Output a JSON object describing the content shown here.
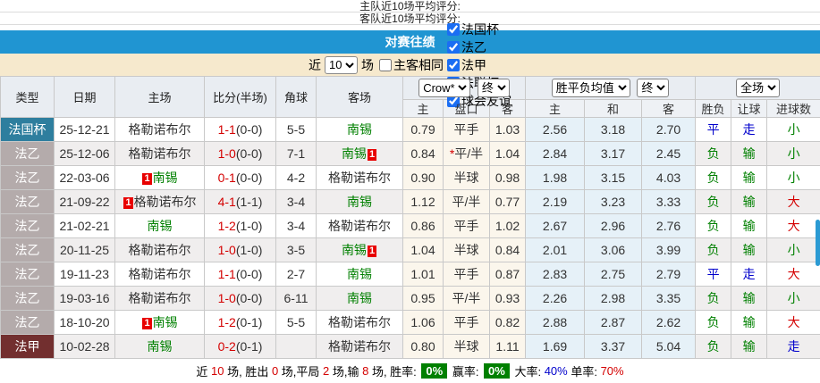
{
  "ratings": {
    "home_label": "主队近10场平均评分:",
    "away_label": "客队近10场平均评分:"
  },
  "banner": {
    "title": "对赛往绩"
  },
  "filter": {
    "near_label": "近",
    "count_value": "10",
    "matches_label": "场",
    "same_venue": {
      "label": "主客相同",
      "checked": false
    },
    "leagues": [
      {
        "label": "法国杯",
        "checked": true
      },
      {
        "label": "法乙",
        "checked": true
      },
      {
        "label": "法甲",
        "checked": true
      },
      {
        "label": "法联杯",
        "checked": true
      },
      {
        "label": "球会友谊",
        "checked": true
      }
    ]
  },
  "table": {
    "main_headers": [
      "类型",
      "日期",
      "主场",
      "比分(半场)",
      "角球",
      "客场"
    ],
    "group_selects": {
      "company": "Crow*",
      "company_final": "终",
      "wdl_avg": "胜平负均值",
      "wdl_final": "终",
      "full_match": "全场"
    },
    "sub_headers": [
      "主",
      "盘口",
      "客",
      "主",
      "和",
      "客",
      "胜负",
      "让球",
      "进球数"
    ],
    "rows": [
      {
        "league": "法国杯",
        "league_class": "cup",
        "date": "25-12-21",
        "home": "格勒诺布尔",
        "home_color": "dark",
        "home_badge": "",
        "score_ft": "1-1",
        "score_ht": "(0-0)",
        "corners": "5-5",
        "away": "南锡",
        "away_color": "green",
        "away_badge": "",
        "odds_home": "0.79",
        "handicap": "平手",
        "handicap_star": false,
        "odds_away": "1.03",
        "avg_home": "2.56",
        "avg_draw": "3.18",
        "avg_away": "2.70",
        "result": "平",
        "result_color": "blue",
        "give": "走",
        "give_color": "blue",
        "goals": "小",
        "goals_color": "green"
      },
      {
        "league": "法乙",
        "league_class": "l2",
        "date": "25-12-06",
        "home": "格勒诺布尔",
        "home_color": "dark",
        "home_badge": "",
        "score_ft": "1-0",
        "score_ht": "(0-0)",
        "corners": "7-1",
        "away": "南锡",
        "away_color": "green",
        "away_badge": "1",
        "odds_home": "0.84",
        "handicap": "平/半",
        "handicap_star": true,
        "odds_away": "1.04",
        "avg_home": "2.84",
        "avg_draw": "3.17",
        "avg_away": "2.45",
        "result": "负",
        "result_color": "green",
        "give": "输",
        "give_color": "green",
        "goals": "小",
        "goals_color": "green"
      },
      {
        "league": "法乙",
        "league_class": "l2",
        "date": "22-03-06",
        "home": "南锡",
        "home_color": "green",
        "home_badge": "1",
        "score_ft": "0-1",
        "score_ht": "(0-0)",
        "corners": "4-2",
        "away": "格勒诺布尔",
        "away_color": "dark",
        "away_badge": "",
        "odds_home": "0.90",
        "handicap": "半球",
        "handicap_star": false,
        "odds_away": "0.98",
        "avg_home": "1.98",
        "avg_draw": "3.15",
        "avg_away": "4.03",
        "result": "负",
        "result_color": "green",
        "give": "输",
        "give_color": "green",
        "goals": "小",
        "goals_color": "green"
      },
      {
        "league": "法乙",
        "league_class": "l2",
        "date": "21-09-22",
        "home": "格勒诺布尔",
        "home_color": "dark",
        "home_badge": "1",
        "score_ft": "4-1",
        "score_ht": "(1-1)",
        "corners": "3-4",
        "away": "南锡",
        "away_color": "green",
        "away_badge": "",
        "odds_home": "1.12",
        "handicap": "平/半",
        "handicap_star": false,
        "odds_away": "0.77",
        "avg_home": "2.19",
        "avg_draw": "3.23",
        "avg_away": "3.33",
        "result": "负",
        "result_color": "green",
        "give": "输",
        "give_color": "green",
        "goals": "大",
        "goals_color": "red"
      },
      {
        "league": "法乙",
        "league_class": "l2",
        "date": "21-02-21",
        "home": "南锡",
        "home_color": "green",
        "home_badge": "",
        "score_ft": "1-2",
        "score_ht": "(1-0)",
        "corners": "3-4",
        "away": "格勒诺布尔",
        "away_color": "dark",
        "away_badge": "",
        "odds_home": "0.86",
        "handicap": "平手",
        "handicap_star": false,
        "odds_away": "1.02",
        "avg_home": "2.67",
        "avg_draw": "2.96",
        "avg_away": "2.76",
        "result": "负",
        "result_color": "green",
        "give": "输",
        "give_color": "green",
        "goals": "大",
        "goals_color": "red"
      },
      {
        "league": "法乙",
        "league_class": "l2",
        "date": "20-11-25",
        "home": "格勒诺布尔",
        "home_color": "dark",
        "home_badge": "",
        "score_ft": "1-0",
        "score_ht": "(1-0)",
        "corners": "3-5",
        "away": "南锡",
        "away_color": "green",
        "away_badge": "1",
        "odds_home": "1.04",
        "handicap": "半球",
        "handicap_star": false,
        "odds_away": "0.84",
        "avg_home": "2.01",
        "avg_draw": "3.06",
        "avg_away": "3.99",
        "result": "负",
        "result_color": "green",
        "give": "输",
        "give_color": "green",
        "goals": "小",
        "goals_color": "green"
      },
      {
        "league": "法乙",
        "league_class": "l2",
        "date": "19-11-23",
        "home": "格勒诺布尔",
        "home_color": "dark",
        "home_badge": "",
        "score_ft": "1-1",
        "score_ht": "(0-0)",
        "corners": "2-7",
        "away": "南锡",
        "away_color": "green",
        "away_badge": "",
        "odds_home": "1.01",
        "handicap": "平手",
        "handicap_star": false,
        "odds_away": "0.87",
        "avg_home": "2.83",
        "avg_draw": "2.75",
        "avg_away": "2.79",
        "result": "平",
        "result_color": "blue",
        "give": "走",
        "give_color": "blue",
        "goals": "大",
        "goals_color": "red"
      },
      {
        "league": "法乙",
        "league_class": "l2",
        "date": "19-03-16",
        "home": "格勒诺布尔",
        "home_color": "dark",
        "home_badge": "",
        "score_ft": "1-0",
        "score_ht": "(0-0)",
        "corners": "6-11",
        "away": "南锡",
        "away_color": "green",
        "away_badge": "",
        "odds_home": "0.95",
        "handicap": "平/半",
        "handicap_star": false,
        "odds_away": "0.93",
        "avg_home": "2.26",
        "avg_draw": "2.98",
        "avg_away": "3.35",
        "result": "负",
        "result_color": "green",
        "give": "输",
        "give_color": "green",
        "goals": "小",
        "goals_color": "green"
      },
      {
        "league": "法乙",
        "league_class": "l2",
        "date": "18-10-20",
        "home": "南锡",
        "home_color": "green",
        "home_badge": "1",
        "score_ft": "1-2",
        "score_ht": "(0-1)",
        "corners": "5-5",
        "away": "格勒诺布尔",
        "away_color": "dark",
        "away_badge": "",
        "odds_home": "1.06",
        "handicap": "平手",
        "handicap_star": false,
        "odds_away": "0.82",
        "avg_home": "2.88",
        "avg_draw": "2.87",
        "avg_away": "2.62",
        "result": "负",
        "result_color": "green",
        "give": "输",
        "give_color": "green",
        "goals": "大",
        "goals_color": "red"
      },
      {
        "league": "法甲",
        "league_class": "l1",
        "date": "10-02-28",
        "home": "南锡",
        "home_color": "green",
        "home_badge": "",
        "score_ft": "0-2",
        "score_ht": "(0-1)",
        "corners": "",
        "away": "格勒诺布尔",
        "away_color": "dark",
        "away_badge": "",
        "odds_home": "0.80",
        "handicap": "半球",
        "handicap_star": false,
        "odds_away": "1.11",
        "avg_home": "1.69",
        "avg_draw": "3.37",
        "avg_away": "5.04",
        "result": "负",
        "result_color": "green",
        "give": "输",
        "give_color": "green",
        "goals": "走",
        "goals_color": "blue"
      }
    ]
  },
  "summary": {
    "seg1": "近 ",
    "total": "10",
    "seg2": " 场, 胜出 ",
    "wins": "0",
    "seg3": " 场,平局 ",
    "draws": "2",
    "seg4": " 场,输 ",
    "losses": "8",
    "seg5": " 场, 胜率: ",
    "win_rate": "0%",
    "seg6": " 赢率: ",
    "profit_rate": "0%",
    "seg7": " 大率: ",
    "over_rate": "40%",
    "seg8": " 单率: ",
    "single_rate": "70%"
  },
  "colors": {
    "banner_bg": "#2095d2",
    "filter_bg": "#f6e9cd",
    "league_cup": "#2e7e9e",
    "league_ligue2": "#b4abab",
    "league_ligue1": "#722f2f",
    "win_green": "#008000",
    "draw_blue": "#0000cc",
    "loss_red": "#d40000",
    "row_stripe": "#f0eeee",
    "odds_col_bg": "#fbf6ec",
    "avg_col_bg": "#e6f1f8",
    "rate_box_bg": "#008000",
    "badge_red": "#e80000"
  }
}
